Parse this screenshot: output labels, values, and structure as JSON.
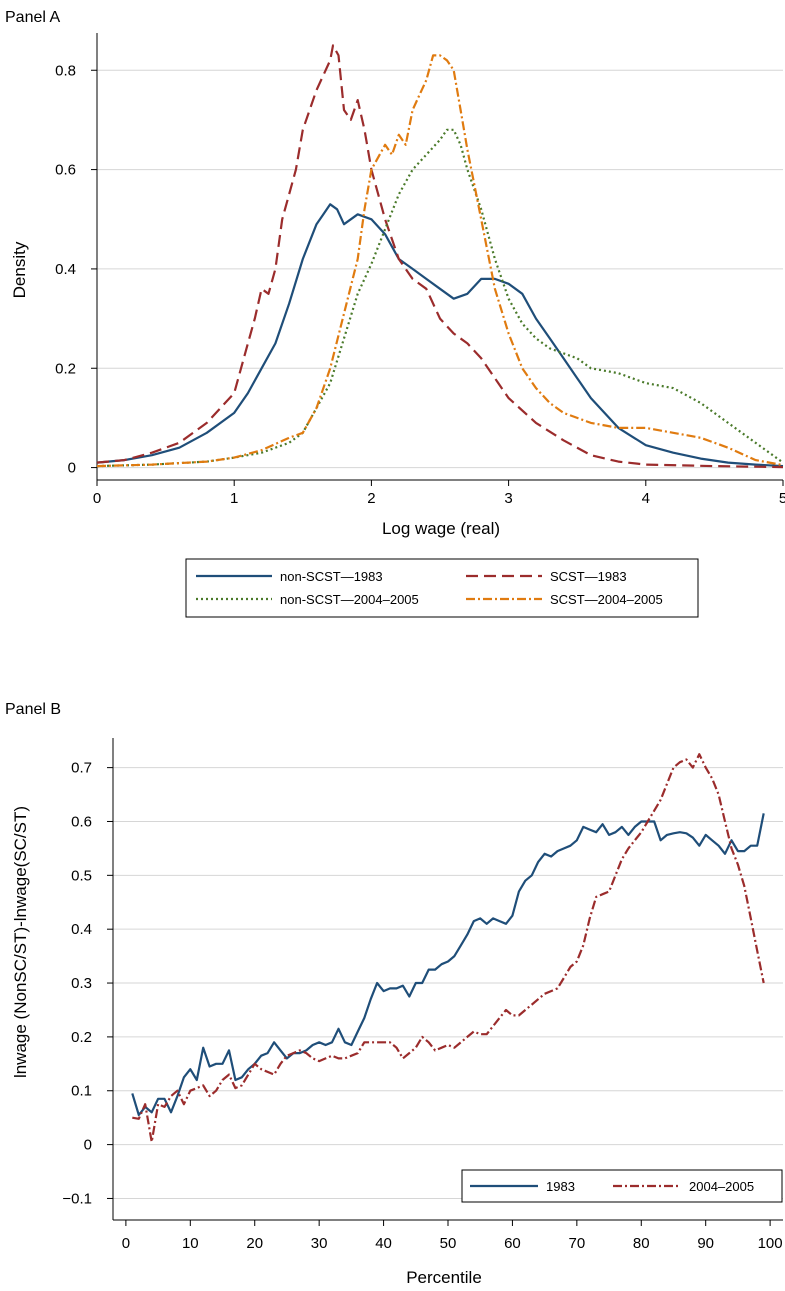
{
  "chart_data": [
    {
      "type": "line",
      "title": "Panel A",
      "xlabel": "Log wage (real)",
      "ylabel": "Density",
      "xlim": [
        0,
        5
      ],
      "ylim": [
        0,
        0.85
      ],
      "xticks": [
        "0",
        "1",
        "2",
        "3",
        "4",
        "5"
      ],
      "yticks": [
        "0",
        "0.2",
        "0.4",
        "0.6",
        "0.8"
      ],
      "grid": true,
      "legend_position": "bottom",
      "series": [
        {
          "name": "non-SCST—1983",
          "color": "#1f4e79",
          "dash": "solid",
          "x": [
            0,
            0.2,
            0.4,
            0.6,
            0.8,
            1.0,
            1.1,
            1.2,
            1.3,
            1.4,
            1.5,
            1.6,
            1.65,
            1.7,
            1.75,
            1.8,
            1.85,
            1.9,
            2.0,
            2.1,
            2.2,
            2.3,
            2.4,
            2.5,
            2.6,
            2.7,
            2.8,
            2.9,
            3.0,
            3.1,
            3.2,
            3.3,
            3.4,
            3.5,
            3.6,
            3.8,
            4.0,
            4.2,
            4.4,
            4.6,
            4.8,
            5.0
          ],
          "y": [
            0.01,
            0.015,
            0.025,
            0.04,
            0.07,
            0.11,
            0.15,
            0.2,
            0.25,
            0.33,
            0.42,
            0.49,
            0.51,
            0.53,
            0.52,
            0.49,
            0.5,
            0.51,
            0.5,
            0.47,
            0.42,
            0.4,
            0.38,
            0.36,
            0.34,
            0.35,
            0.38,
            0.38,
            0.37,
            0.35,
            0.3,
            0.26,
            0.22,
            0.18,
            0.14,
            0.08,
            0.045,
            0.03,
            0.018,
            0.01,
            0.006,
            0.003
          ]
        },
        {
          "name": "SCST—1983",
          "color": "#9b2c2c",
          "dash": "long-dash",
          "x": [
            0,
            0.2,
            0.4,
            0.6,
            0.8,
            1.0,
            1.1,
            1.15,
            1.2,
            1.25,
            1.3,
            1.35,
            1.4,
            1.45,
            1.5,
            1.6,
            1.7,
            1.72,
            1.76,
            1.8,
            1.85,
            1.9,
            1.95,
            2.0,
            2.1,
            2.2,
            2.3,
            2.4,
            2.5,
            2.6,
            2.7,
            2.8,
            2.9,
            3.0,
            3.2,
            3.4,
            3.6,
            3.8,
            4.0,
            4.5,
            5.0
          ],
          "y": [
            0.01,
            0.015,
            0.03,
            0.05,
            0.09,
            0.15,
            0.25,
            0.3,
            0.36,
            0.35,
            0.4,
            0.5,
            0.55,
            0.6,
            0.68,
            0.76,
            0.82,
            0.85,
            0.83,
            0.72,
            0.7,
            0.74,
            0.68,
            0.6,
            0.5,
            0.42,
            0.38,
            0.36,
            0.3,
            0.27,
            0.25,
            0.22,
            0.18,
            0.14,
            0.09,
            0.055,
            0.025,
            0.012,
            0.006,
            0.003,
            0.001
          ]
        },
        {
          "name": "non-SCST—2004–2005",
          "color": "#4a7a2a",
          "dash": "dotted",
          "x": [
            0,
            0.4,
            0.8,
            1.0,
            1.2,
            1.4,
            1.5,
            1.6,
            1.7,
            1.8,
            1.9,
            2.0,
            2.1,
            2.2,
            2.3,
            2.4,
            2.5,
            2.55,
            2.6,
            2.65,
            2.7,
            2.8,
            2.9,
            3.0,
            3.1,
            3.2,
            3.3,
            3.5,
            3.6,
            3.8,
            3.9,
            4.0,
            4.2,
            4.4,
            4.6,
            4.8,
            5.0
          ],
          "y": [
            0.003,
            0.006,
            0.012,
            0.02,
            0.03,
            0.05,
            0.07,
            0.12,
            0.17,
            0.26,
            0.35,
            0.41,
            0.48,
            0.55,
            0.6,
            0.63,
            0.66,
            0.68,
            0.68,
            0.65,
            0.6,
            0.52,
            0.42,
            0.34,
            0.29,
            0.26,
            0.24,
            0.22,
            0.2,
            0.19,
            0.18,
            0.17,
            0.16,
            0.13,
            0.09,
            0.05,
            0.01
          ]
        },
        {
          "name": "SCST—2004–2005",
          "color": "#e07b10",
          "dash": "dash-dot",
          "x": [
            0,
            0.4,
            0.8,
            1.0,
            1.2,
            1.4,
            1.5,
            1.6,
            1.7,
            1.8,
            1.9,
            1.95,
            2.0,
            2.1,
            2.15,
            2.2,
            2.25,
            2.3,
            2.35,
            2.4,
            2.45,
            2.5,
            2.55,
            2.6,
            2.65,
            2.7,
            2.8,
            2.9,
            3.0,
            3.1,
            3.2,
            3.3,
            3.4,
            3.5,
            3.6,
            3.8,
            4.0,
            4.2,
            4.4,
            4.6,
            4.8,
            5.0
          ],
          "y": [
            0.003,
            0.006,
            0.012,
            0.02,
            0.035,
            0.06,
            0.07,
            0.12,
            0.2,
            0.31,
            0.42,
            0.52,
            0.6,
            0.65,
            0.63,
            0.67,
            0.65,
            0.72,
            0.75,
            0.78,
            0.83,
            0.83,
            0.82,
            0.8,
            0.72,
            0.64,
            0.5,
            0.36,
            0.27,
            0.2,
            0.16,
            0.13,
            0.11,
            0.1,
            0.09,
            0.08,
            0.08,
            0.07,
            0.06,
            0.04,
            0.015,
            0.005
          ]
        }
      ]
    },
    {
      "type": "line",
      "title": "Panel B",
      "xlabel": "Percentile",
      "ylabel": "lnwage (NonSC/ST)-lnwage(SC/ST)",
      "xlim": [
        0,
        100
      ],
      "ylim": [
        -0.1,
        0.7
      ],
      "xticks": [
        "0",
        "10",
        "20",
        "30",
        "40",
        "50",
        "60",
        "70",
        "80",
        "90",
        "100"
      ],
      "yticks": [
        "−0.1",
        "0",
        "0.1",
        "0.2",
        "0.3",
        "0.4",
        "0.5",
        "0.6",
        "0.7"
      ],
      "grid": true,
      "legend_position": "bottom-right",
      "series": [
        {
          "name": "1983",
          "color": "#1f4e79",
          "dash": "solid",
          "x": [
            1,
            2,
            3,
            4,
            5,
            6,
            7,
            8,
            9,
            10,
            11,
            12,
            13,
            14,
            15,
            16,
            17,
            18,
            19,
            20,
            21,
            22,
            23,
            24,
            25,
            26,
            27,
            28,
            29,
            30,
            31,
            32,
            33,
            34,
            35,
            36,
            37,
            38,
            39,
            40,
            41,
            42,
            43,
            44,
            45,
            46,
            47,
            48,
            49,
            50,
            51,
            52,
            53,
            54,
            55,
            56,
            57,
            58,
            59,
            60,
            61,
            62,
            63,
            64,
            65,
            66,
            67,
            68,
            69,
            70,
            71,
            72,
            73,
            74,
            75,
            76,
            77,
            78,
            79,
            80,
            81,
            82,
            83,
            84,
            85,
            86,
            87,
            88,
            89,
            90,
            91,
            92,
            93,
            94,
            95,
            96,
            97,
            98,
            99
          ],
          "y": [
            0.095,
            0.055,
            0.07,
            0.06,
            0.085,
            0.085,
            0.06,
            0.09,
            0.125,
            0.14,
            0.12,
            0.18,
            0.145,
            0.15,
            0.15,
            0.175,
            0.12,
            0.125,
            0.14,
            0.15,
            0.165,
            0.17,
            0.19,
            0.175,
            0.16,
            0.17,
            0.17,
            0.175,
            0.185,
            0.19,
            0.185,
            0.19,
            0.215,
            0.19,
            0.185,
            0.21,
            0.235,
            0.27,
            0.3,
            0.285,
            0.29,
            0.29,
            0.295,
            0.275,
            0.3,
            0.3,
            0.325,
            0.325,
            0.335,
            0.34,
            0.35,
            0.37,
            0.39,
            0.415,
            0.42,
            0.41,
            0.42,
            0.415,
            0.41,
            0.425,
            0.47,
            0.49,
            0.5,
            0.525,
            0.54,
            0.535,
            0.545,
            0.55,
            0.555,
            0.565,
            0.59,
            0.585,
            0.58,
            0.595,
            0.575,
            0.58,
            0.59,
            0.575,
            0.59,
            0.6,
            0.6,
            0.6,
            0.565,
            0.575,
            0.578,
            0.58,
            0.578,
            0.57,
            0.555,
            0.575,
            0.565,
            0.555,
            0.54,
            0.565,
            0.545,
            0.545,
            0.555,
            0.555,
            0.615
          ]
        },
        {
          "name": "2004–2005",
          "color": "#9b2c2c",
          "dash": "dash-dot",
          "x": [
            1,
            2,
            3,
            4,
            5,
            6,
            7,
            8,
            9,
            10,
            11,
            12,
            13,
            14,
            15,
            16,
            17,
            18,
            19,
            20,
            21,
            22,
            23,
            24,
            25,
            26,
            27,
            28,
            29,
            30,
            31,
            32,
            33,
            34,
            35,
            36,
            37,
            38,
            39,
            40,
            41,
            42,
            43,
            44,
            45,
            46,
            47,
            48,
            49,
            50,
            51,
            52,
            53,
            54,
            55,
            56,
            57,
            58,
            59,
            60,
            61,
            62,
            63,
            64,
            65,
            66,
            67,
            68,
            69,
            70,
            71,
            72,
            73,
            74,
            75,
            76,
            77,
            78,
            79,
            80,
            81,
            82,
            83,
            84,
            85,
            86,
            87,
            88,
            89,
            90,
            91,
            92,
            93,
            94,
            95,
            96,
            97,
            98,
            99
          ],
          "y": [
            0.05,
            0.048,
            0.075,
            0.005,
            0.075,
            0.07,
            0.09,
            0.1,
            0.075,
            0.1,
            0.105,
            0.11,
            0.09,
            0.1,
            0.12,
            0.13,
            0.105,
            0.11,
            0.13,
            0.15,
            0.14,
            0.135,
            0.13,
            0.15,
            0.165,
            0.17,
            0.175,
            0.17,
            0.16,
            0.155,
            0.16,
            0.165,
            0.16,
            0.16,
            0.165,
            0.17,
            0.19,
            0.19,
            0.19,
            0.19,
            0.19,
            0.18,
            0.16,
            0.17,
            0.18,
            0.2,
            0.19,
            0.175,
            0.18,
            0.185,
            0.18,
            0.19,
            0.2,
            0.21,
            0.205,
            0.205,
            0.22,
            0.235,
            0.25,
            0.24,
            0.24,
            0.25,
            0.26,
            0.27,
            0.28,
            0.285,
            0.29,
            0.31,
            0.33,
            0.34,
            0.37,
            0.42,
            0.46,
            0.465,
            0.47,
            0.5,
            0.53,
            0.55,
            0.565,
            0.58,
            0.6,
            0.62,
            0.64,
            0.67,
            0.7,
            0.71,
            0.715,
            0.7,
            0.725,
            0.7,
            0.68,
            0.65,
            0.6,
            0.55,
            0.52,
            0.48,
            0.42,
            0.36,
            0.3
          ]
        }
      ]
    }
  ]
}
